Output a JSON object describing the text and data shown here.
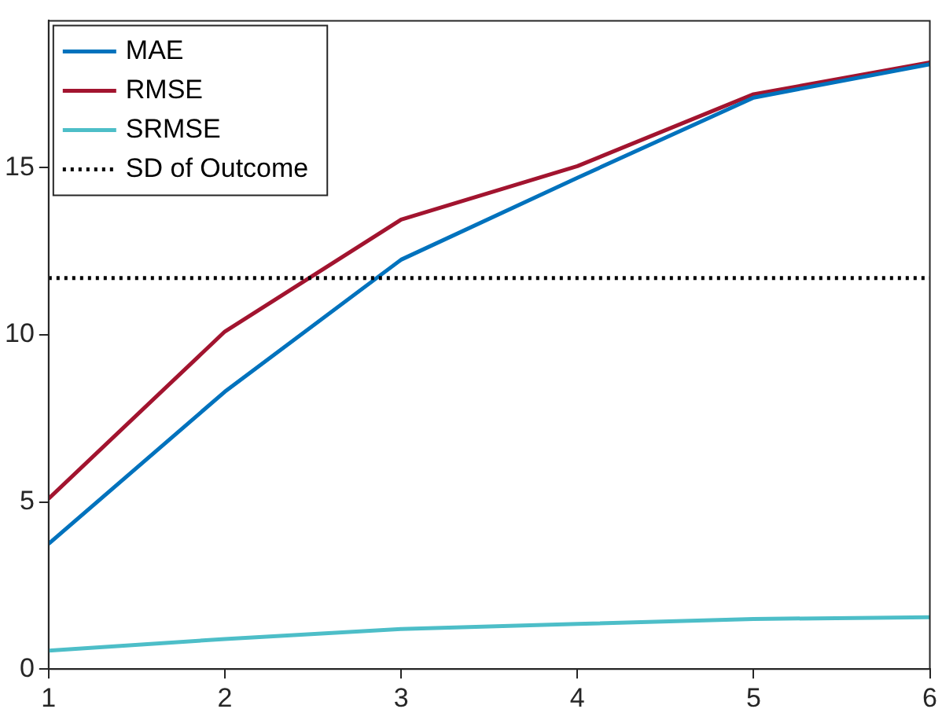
{
  "chart_data": {
    "type": "line",
    "x": [
      1,
      2,
      3,
      4,
      5,
      6
    ],
    "series": [
      {
        "name": "MAE",
        "color": "#0072bd",
        "values": [
          3.75,
          8.3,
          12.25,
          14.7,
          17.1,
          18.1
        ]
      },
      {
        "name": "RMSE",
        "color": "#a2142f",
        "values": [
          5.1,
          10.1,
          13.45,
          15.05,
          17.2,
          18.15
        ]
      },
      {
        "name": "SRMSE",
        "color": "#4dbec8",
        "values": [
          0.55,
          0.9,
          1.2,
          1.35,
          1.5,
          1.55
        ]
      }
    ],
    "ref_lines": [
      {
        "axis": "y",
        "value": 11.7,
        "label": "SD of Outcome",
        "color": "#000000",
        "line_style": "dotted"
      }
    ],
    "xlim": [
      1,
      6
    ],
    "xticks": [
      1,
      2,
      3,
      4,
      5,
      6
    ],
    "ylim": [
      0,
      19.4
    ],
    "yticks": [
      0,
      5,
      10,
      15
    ],
    "grid": false,
    "legend": "top left",
    "marker": "none",
    "line_style": "solid"
  }
}
